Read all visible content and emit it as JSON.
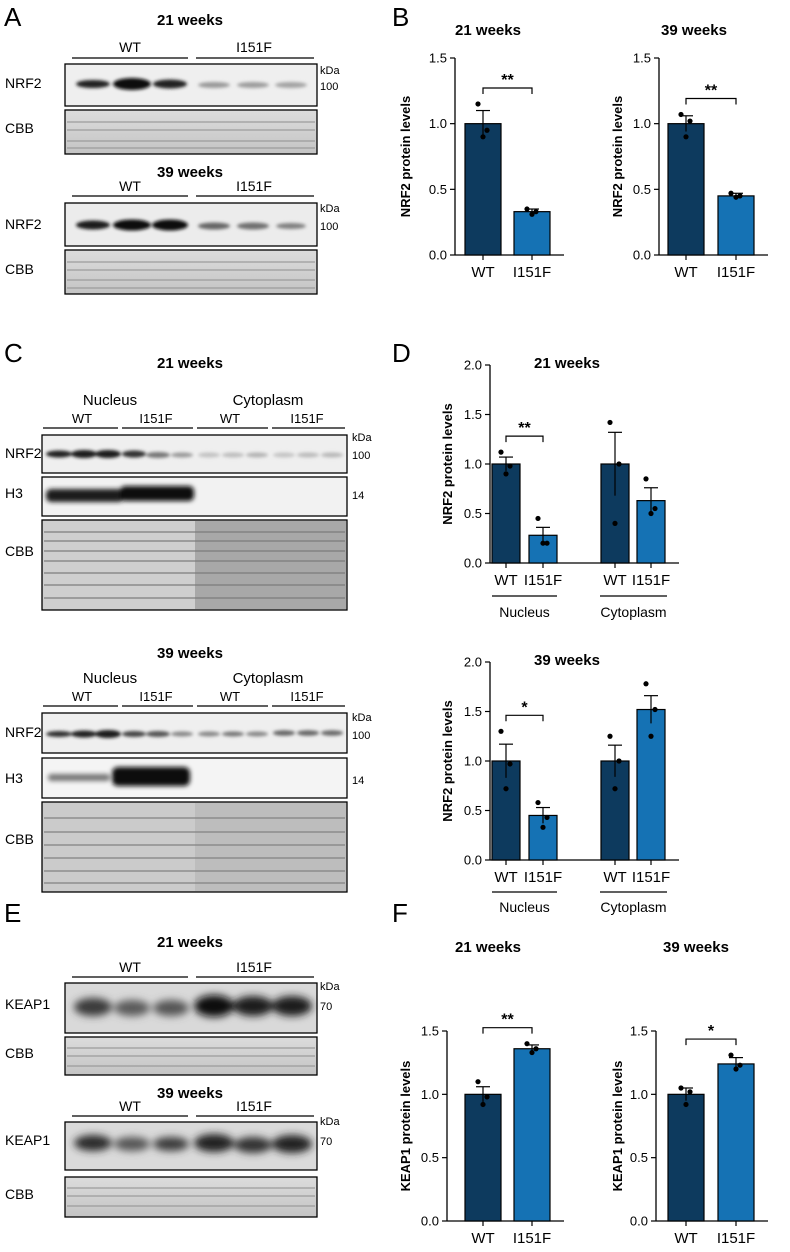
{
  "panel_letters": [
    "A",
    "B",
    "C",
    "D",
    "E",
    "F"
  ],
  "blots": {
    "A": [
      {
        "title": "21 weeks",
        "groups": [
          "WT",
          "I151F"
        ],
        "kda_label": "kDa",
        "rows": [
          {
            "label": "NRF2",
            "marker": "100"
          },
          {
            "label": "CBB",
            "marker": ""
          }
        ]
      },
      {
        "title": "39 weeks",
        "groups": [
          "WT",
          "I151F"
        ],
        "kda_label": "kDa",
        "rows": [
          {
            "label": "NRF2",
            "marker": "100"
          },
          {
            "label": "CBB",
            "marker": ""
          }
        ]
      }
    ],
    "C": [
      {
        "title": "21 weeks",
        "compartments": [
          "Nucleus",
          "Cytoplasm"
        ],
        "groups": [
          "WT",
          "I151F",
          "WT",
          "I151F"
        ],
        "kda_label": "kDa",
        "rows": [
          {
            "label": "NRF2",
            "marker": "100"
          },
          {
            "label": "H3",
            "marker": "14"
          },
          {
            "label": "CBB",
            "marker": ""
          }
        ]
      },
      {
        "title": "39 weeks",
        "compartments": [
          "Nucleus",
          "Cytoplasm"
        ],
        "groups": [
          "WT",
          "I151F",
          "WT",
          "I151F"
        ],
        "kda_label": "kDa",
        "rows": [
          {
            "label": "NRF2",
            "marker": "100"
          },
          {
            "label": "H3",
            "marker": "14"
          },
          {
            "label": "CBB",
            "marker": ""
          }
        ]
      }
    ],
    "E": [
      {
        "title": "21 weeks",
        "groups": [
          "WT",
          "I151F"
        ],
        "kda_label": "kDa",
        "rows": [
          {
            "label": "KEAP1",
            "marker": "70"
          },
          {
            "label": "CBB",
            "marker": ""
          }
        ]
      },
      {
        "title": "39 weeks",
        "groups": [
          "WT",
          "I151F"
        ],
        "kda_label": "kDa",
        "rows": [
          {
            "label": "KEAP1",
            "marker": "70"
          },
          {
            "label": "CBB",
            "marker": ""
          }
        ]
      }
    ]
  },
  "colors": {
    "wt": "#0d3a5e",
    "mut": "#1572b4",
    "axis": "#000000"
  },
  "chart_data": [
    {
      "id": "B1",
      "type": "bar",
      "title": "21 weeks",
      "ylabel": "NRF2 protein levels",
      "categories": [
        "WT",
        "I151F"
      ],
      "values": [
        1.0,
        0.33
      ],
      "errors": [
        0.1,
        0.02
      ],
      "points": [
        [
          1.15,
          0.95,
          0.9
        ],
        [
          0.35,
          0.33,
          0.31
        ]
      ],
      "ylim": [
        0,
        1.5
      ],
      "yticks": [
        "0.0",
        "0.5",
        "1.0",
        "1.5"
      ],
      "significance": [
        {
          "from": 0,
          "to": 1,
          "label": "**"
        }
      ]
    },
    {
      "id": "B2",
      "type": "bar",
      "title": "39 weeks",
      "ylabel": "NRF2 protein levels",
      "categories": [
        "WT",
        "I151F"
      ],
      "values": [
        1.0,
        0.45
      ],
      "errors": [
        0.06,
        0.02
      ],
      "points": [
        [
          1.07,
          1.02,
          0.9
        ],
        [
          0.47,
          0.45,
          0.44
        ]
      ],
      "ylim": [
        0,
        1.5
      ],
      "yticks": [
        "0.0",
        "0.5",
        "1.0",
        "1.5"
      ],
      "significance": [
        {
          "from": 0,
          "to": 1,
          "label": "**"
        }
      ]
    },
    {
      "id": "D1",
      "type": "bar",
      "title": "21 weeks",
      "ylabel": "NRF2 protein levels",
      "categories": [
        "WT",
        "I151F",
        "WT",
        "I151F"
      ],
      "values": [
        1.0,
        0.28,
        1.0,
        0.63
      ],
      "errors": [
        0.07,
        0.08,
        0.32,
        0.13
      ],
      "points": [
        [
          1.12,
          0.98,
          0.9
        ],
        [
          0.45,
          0.2,
          0.2
        ],
        [
          1.42,
          1.0,
          0.4
        ],
        [
          0.85,
          0.55,
          0.5
        ]
      ],
      "groups": [
        "Nucleus",
        "Cytoplasm"
      ],
      "ylim": [
        0,
        2.0
      ],
      "yticks": [
        "0.0",
        "0.5",
        "1.0",
        "1.5",
        "2.0"
      ],
      "significance": [
        {
          "from": 0,
          "to": 1,
          "label": "**"
        }
      ]
    },
    {
      "id": "D2",
      "type": "bar",
      "title": "39 weeks",
      "ylabel": "NRF2 protein levels",
      "categories": [
        "WT",
        "I151F",
        "WT",
        "I151F"
      ],
      "values": [
        1.0,
        0.45,
        1.0,
        1.52
      ],
      "errors": [
        0.17,
        0.08,
        0.16,
        0.14
      ],
      "points": [
        [
          1.3,
          0.97,
          0.72
        ],
        [
          0.58,
          0.43,
          0.33
        ],
        [
          1.25,
          1.0,
          0.72
        ],
        [
          1.78,
          1.52,
          1.25
        ]
      ],
      "groups": [
        "Nucleus",
        "Cytoplasm"
      ],
      "ylim": [
        0,
        2.0
      ],
      "yticks": [
        "0.0",
        "0.5",
        "1.0",
        "1.5",
        "2.0"
      ],
      "significance": [
        {
          "from": 0,
          "to": 1,
          "label": "*"
        }
      ]
    },
    {
      "id": "F1",
      "type": "bar",
      "title": "21 weeks",
      "ylabel": "KEAP1 protein levels",
      "categories": [
        "WT",
        "I151F"
      ],
      "values": [
        1.0,
        1.36
      ],
      "errors": [
        0.06,
        0.03
      ],
      "points": [
        [
          1.1,
          0.98,
          0.92
        ],
        [
          1.4,
          1.36,
          1.33
        ]
      ],
      "ylim": [
        0,
        1.5
      ],
      "yticks": [
        "0.0",
        "0.5",
        "1.0",
        "1.5"
      ],
      "significance": [
        {
          "from": 0,
          "to": 1,
          "label": "**"
        }
      ]
    },
    {
      "id": "F2",
      "type": "bar",
      "title": "39 weeks",
      "ylabel": "KEAP1 protein levels",
      "categories": [
        "WT",
        "I151F"
      ],
      "values": [
        1.0,
        1.24
      ],
      "errors": [
        0.05,
        0.05
      ],
      "points": [
        [
          1.05,
          1.02,
          0.92
        ],
        [
          1.31,
          1.23,
          1.2
        ]
      ],
      "ylim": [
        0,
        1.5
      ],
      "yticks": [
        "0.0",
        "0.5",
        "1.0",
        "1.5"
      ],
      "significance": [
        {
          "from": 0,
          "to": 1,
          "label": "*"
        }
      ]
    }
  ]
}
